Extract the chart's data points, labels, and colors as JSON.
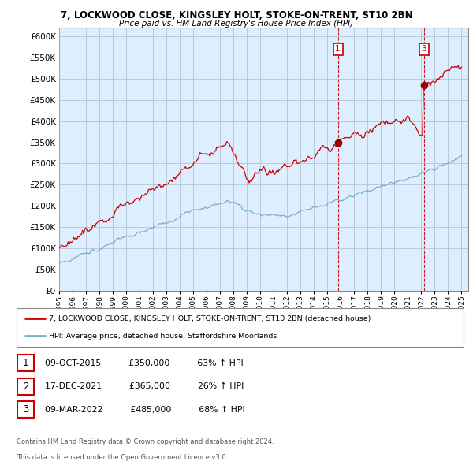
{
  "title1": "7, LOCKWOOD CLOSE, KINGSLEY HOLT, STOKE-ON-TRENT, ST10 2BN",
  "title2": "Price paid vs. HM Land Registry's House Price Index (HPI)",
  "ytick_values": [
    0,
    50000,
    100000,
    150000,
    200000,
    250000,
    300000,
    350000,
    400000,
    450000,
    500000,
    550000,
    600000
  ],
  "ylim": [
    0,
    620000
  ],
  "xlim_start": 1995.0,
  "xlim_end": 2025.5,
  "legend_line1": "7, LOCKWOOD CLOSE, KINGSLEY HOLT, STOKE-ON-TRENT, ST10 2BN (detached house)",
  "legend_line2": "HPI: Average price, detached house, Staffordshire Moorlands",
  "transactions": [
    {
      "num": 1,
      "date": "09-OCT-2015",
      "price": 350000,
      "pct": "63%",
      "year": 2015.78,
      "show_on_chart": true
    },
    {
      "num": 2,
      "date": "17-DEC-2021",
      "price": 365000,
      "pct": "26%",
      "year": 2021.96,
      "show_on_chart": false
    },
    {
      "num": 3,
      "date": "09-MAR-2022",
      "price": 485000,
      "pct": "68%",
      "year": 2022.19,
      "show_on_chart": true
    }
  ],
  "footer1": "Contains HM Land Registry data © Crown copyright and database right 2024.",
  "footer2": "This data is licensed under the Open Government Licence v3.0.",
  "red_color": "#cc0000",
  "blue_color": "#7aadcc",
  "chart_bg": "#ddeeff",
  "grid_color": "#aabbcc",
  "xticks": [
    1995,
    1996,
    1997,
    1998,
    1999,
    2000,
    2001,
    2002,
    2003,
    2004,
    2005,
    2006,
    2007,
    2008,
    2009,
    2010,
    2011,
    2012,
    2013,
    2014,
    2015,
    2016,
    2017,
    2018,
    2019,
    2020,
    2021,
    2022,
    2023,
    2024,
    2025
  ]
}
